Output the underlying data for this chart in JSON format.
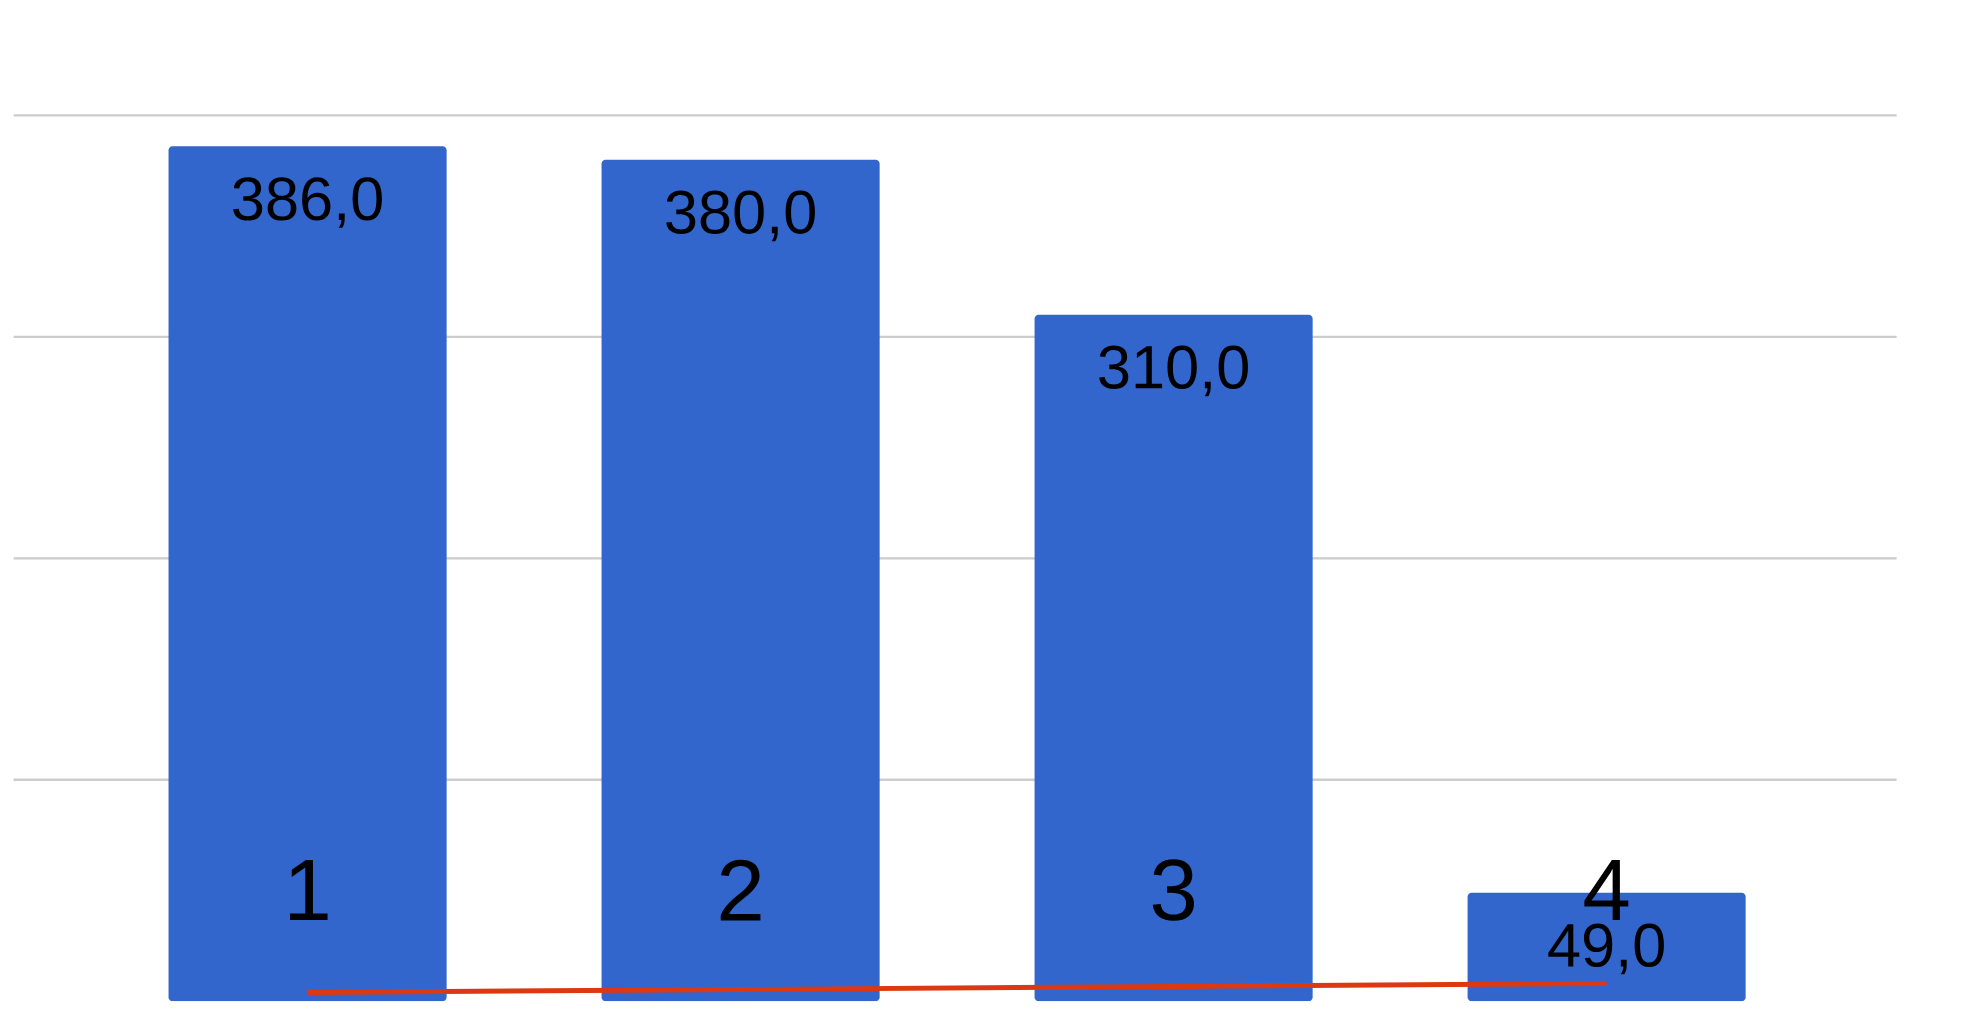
{
  "chart_data": {
    "type": "bar",
    "categories": [
      "1",
      "2",
      "3",
      "4"
    ],
    "series": [
      {
        "color": "#3366cc",
        "values": [
          386,
          380,
          310,
          49
        ],
        "value_labels": [
          "386,0",
          "380,0",
          "310,0",
          "49,0"
        ]
      },
      {
        "type": "line",
        "color": "#dc3912",
        "values": [
          4,
          5.3,
          6.7,
          8
        ]
      }
    ],
    "yticks": [
      {
        "value": 100,
        "label": null
      },
      {
        "value": 200,
        "label": null
      },
      {
        "value": 300,
        "label": null
      },
      {
        "value": 400,
        "label": null
      }
    ],
    "grid": "y",
    "tick_labels": "x",
    "marker": "none"
  }
}
